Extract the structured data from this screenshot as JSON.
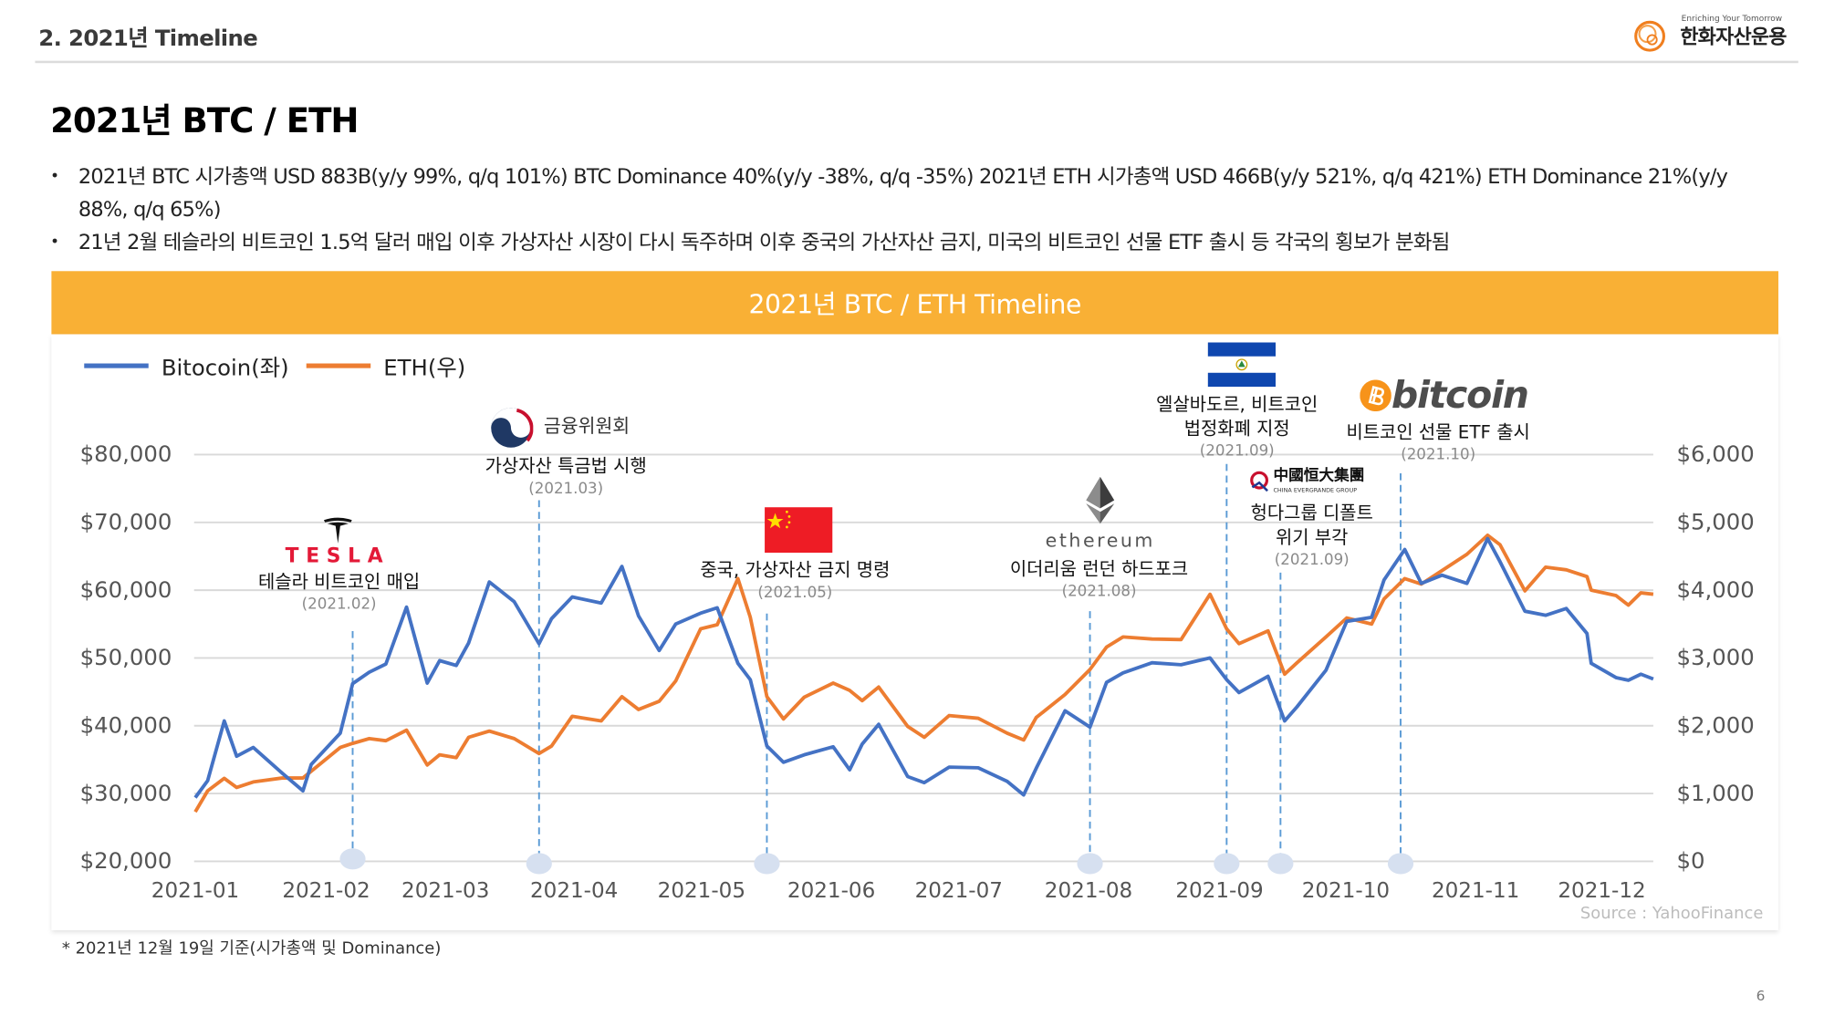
{
  "header": {
    "section_title": "2. 2021년 Timeline",
    "logo_tagline": "Enriching Your Tomorrow",
    "logo_name": "한화자산운용"
  },
  "page_title": "2021년 BTC / ETH",
  "bullets": [
    "2021년 BTC 시가총액 USD 883B(y/y 99%, q/q 101%) BTC Dominance 40%(y/y -38%, q/q -35%) 2021년 ETH 시가총액 USD 466B(y/y 521%, q/q 421%) ETH Dominance 21%(y/y 88%, q/q 65%)",
    "21년 2월 테슬라의 비트코인 1.5억 달러 매입 이후 가상자산 시장이 다시 독주하며 이후 중국의 가산자산 금지, 미국의 비트코인 선물 ETF 출시 등 각국의 횡보가 분화됨"
  ],
  "banner_title": "2021년 BTC / ETH Timeline",
  "source": "Source : YahooFinance",
  "footnote": "* 2021년 12월 19일 기준(시가총액 및 Dominance)",
  "page_number": "6",
  "colors": {
    "btc": "#4472c4",
    "eth": "#ed7d31",
    "banner": "#f9b035",
    "event_line": "#5b9bd5",
    "event_dot": "#d6e0f0"
  },
  "chart_data": {
    "type": "line",
    "title": "2021년 BTC / ETH Timeline",
    "legend": [
      "Bitocoin(좌)",
      "ETH(우)"
    ],
    "legend_position": "top-left",
    "grid": true,
    "x_ticks": [
      "2021-01",
      "2021-02",
      "2021-03",
      "2021-04",
      "2021-05",
      "2021-06",
      "2021-07",
      "2021-08",
      "2021-09",
      "2021-10",
      "2021-11",
      "2021-12"
    ],
    "xlim": [
      "2021-01-01",
      "2021-12-19"
    ],
    "y_left": {
      "label": "Bitocoin",
      "range": [
        20000,
        80000
      ],
      "ticks": [
        "$20,000",
        "$30,000",
        "$40,000",
        "$50,000",
        "$60,000",
        "$70,000",
        "$80,000"
      ]
    },
    "y_right": {
      "label": "ETH",
      "range": [
        0,
        6000
      ],
      "ticks": [
        "$0",
        "$1,000",
        "$2,000",
        "$3,000",
        "$4,000",
        "$5,000",
        "$6,000"
      ]
    },
    "dates": [
      "01-01",
      "01-04",
      "01-08",
      "01-11",
      "01-15",
      "01-22",
      "01-27",
      "01-29",
      "02-05",
      "02-08",
      "02-12",
      "02-16",
      "02-21",
      "02-26",
      "03-01",
      "03-05",
      "03-08",
      "03-13",
      "03-19",
      "03-25",
      "03-28",
      "04-02",
      "04-09",
      "04-14",
      "04-18",
      "04-23",
      "04-27",
      "05-03",
      "05-07",
      "05-12",
      "05-15",
      "05-19",
      "05-23",
      "05-28",
      "06-04",
      "06-08",
      "06-11",
      "06-15",
      "06-22",
      "06-26",
      "07-02",
      "07-09",
      "07-16",
      "07-20",
      "07-23",
      "07-30",
      "08-05",
      "08-09",
      "08-13",
      "08-20",
      "08-27",
      "09-03",
      "09-07",
      "09-10",
      "09-17",
      "09-21",
      "09-24",
      "10-01",
      "10-06",
      "10-12",
      "10-15",
      "10-20",
      "10-24",
      "10-29",
      "11-04",
      "11-09",
      "11-12",
      "11-18",
      "11-23",
      "11-28",
      "12-03",
      "12-04",
      "12-10",
      "12-13",
      "12-16",
      "12-19"
    ],
    "series": [
      {
        "name": "Bitocoin(좌)",
        "axis": "left",
        "values": [
          29400,
          31900,
          40700,
          35500,
          36800,
          33000,
          30400,
          34300,
          38900,
          46200,
          47900,
          49100,
          57500,
          46300,
          49600,
          48900,
          52200,
          61200,
          58300,
          52100,
          55800,
          59000,
          58100,
          63500,
          56200,
          51100,
          55000,
          56600,
          57400,
          49200,
          46800,
          37000,
          34600,
          35700,
          36900,
          33500,
          37300,
          40200,
          32500,
          31600,
          33900,
          33800,
          31800,
          29800,
          33700,
          42200,
          39800,
          46400,
          47800,
          49300,
          49000,
          50000,
          46800,
          44900,
          47300,
          40700,
          42800,
          48200,
          55400,
          56000,
          61500,
          66000,
          61000,
          62200,
          61000,
          67600,
          64200,
          56900,
          56300,
          57300,
          53600,
          49200,
          47100,
          46700,
          47600,
          46900
        ]
      },
      {
        "name": "ETH(우)",
        "axis": "right",
        "values": [
          730,
          1040,
          1225,
          1090,
          1170,
          1230,
          1230,
          1330,
          1680,
          1740,
          1810,
          1780,
          1935,
          1420,
          1570,
          1530,
          1830,
          1920,
          1810,
          1590,
          1700,
          2140,
          2070,
          2430,
          2240,
          2360,
          2660,
          3430,
          3490,
          4170,
          3600,
          2430,
          2100,
          2420,
          2630,
          2520,
          2370,
          2570,
          1990,
          1830,
          2150,
          2110,
          1890,
          1790,
          2120,
          2460,
          2830,
          3160,
          3310,
          3280,
          3270,
          3940,
          3430,
          3210,
          3400,
          2760,
          2930,
          3310,
          3590,
          3500,
          3870,
          4170,
          4090,
          4290,
          4530,
          4810,
          4670,
          3990,
          4340,
          4300,
          4200,
          4000,
          3920,
          3780,
          3960,
          3940
        ]
      }
    ],
    "events": [
      {
        "date": "2021-02-08",
        "label": "테슬라 비트코인 매입",
        "period": "(2021.02)",
        "logo_text": "TESLA"
      },
      {
        "date": "2021-03-25",
        "label": "가상자산 특금법 시행",
        "period": "(2021.03)",
        "logo_text": "금융위원회"
      },
      {
        "date": "2021-05-19",
        "label": "중국, 가상자산 금지 명령",
        "period": "(2021.05)"
      },
      {
        "date": "2021-08-05",
        "label": "이더리움 런던 하드포크",
        "period": "(2021.08)",
        "logo_text": "ethereum"
      },
      {
        "date": "2021-09-07",
        "label_lines": [
          "엘살바도르, 비트코인",
          "법정화폐 지정"
        ],
        "period": "(2021.09)"
      },
      {
        "date": "2021-09-20",
        "label_lines": [
          "헝다그룹 디폴트",
          "위기 부각"
        ],
        "period": "(2021.09)",
        "logo_text": "中國恒大集團",
        "logo_subtext": "CHINA EVERGRANDE GROUP"
      },
      {
        "date": "2021-10-19",
        "label": "비트코인 선물 ETF 출시",
        "period": "(2021.10)",
        "logo_text": "bitcoin"
      }
    ]
  }
}
